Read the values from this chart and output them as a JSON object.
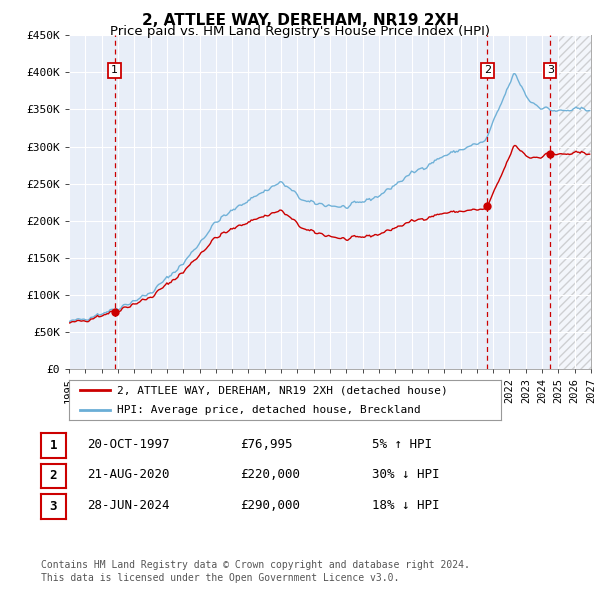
{
  "title": "2, ATTLEE WAY, DEREHAM, NR19 2XH",
  "subtitle": "Price paid vs. HM Land Registry's House Price Index (HPI)",
  "xlim": [
    1995.0,
    2027.0
  ],
  "ylim": [
    0,
    450000
  ],
  "yticks": [
    0,
    50000,
    100000,
    150000,
    200000,
    250000,
    300000,
    350000,
    400000,
    450000
  ],
  "ytick_labels": [
    "£0",
    "£50K",
    "£100K",
    "£150K",
    "£200K",
    "£250K",
    "£300K",
    "£350K",
    "£400K",
    "£450K"
  ],
  "xticks": [
    1995,
    1996,
    1997,
    1998,
    1999,
    2000,
    2001,
    2002,
    2003,
    2004,
    2005,
    2006,
    2007,
    2008,
    2009,
    2010,
    2011,
    2012,
    2013,
    2014,
    2015,
    2016,
    2017,
    2018,
    2019,
    2020,
    2021,
    2022,
    2023,
    2024,
    2025,
    2026,
    2027
  ],
  "sale_points": [
    {
      "date": 1997.8,
      "price": 76995,
      "label": "1"
    },
    {
      "date": 2020.65,
      "price": 220000,
      "label": "2"
    },
    {
      "date": 2024.5,
      "price": 290000,
      "label": "3"
    }
  ],
  "vline_dates": [
    1997.8,
    2020.65,
    2024.5
  ],
  "hpi_color": "#6aaed6",
  "price_color": "#cc0000",
  "vline_color": "#cc0000",
  "background_color": "#e8eef8",
  "grid_color": "#ffffff",
  "legend1_label": "2, ATTLEE WAY, DEREHAM, NR19 2XH (detached house)",
  "legend2_label": "HPI: Average price, detached house, Breckland",
  "table_rows": [
    {
      "num": "1",
      "date": "20-OCT-1997",
      "price": "£76,995",
      "change": "5% ↑ HPI"
    },
    {
      "num": "2",
      "date": "21-AUG-2020",
      "price": "£220,000",
      "change": "30% ↓ HPI"
    },
    {
      "num": "3",
      "date": "28-JUN-2024",
      "price": "£290,000",
      "change": "18% ↓ HPI"
    }
  ],
  "footer": "Contains HM Land Registry data © Crown copyright and database right 2024.\nThis data is licensed under the Open Government Licence v3.0.",
  "hatch_start": 2025.0
}
